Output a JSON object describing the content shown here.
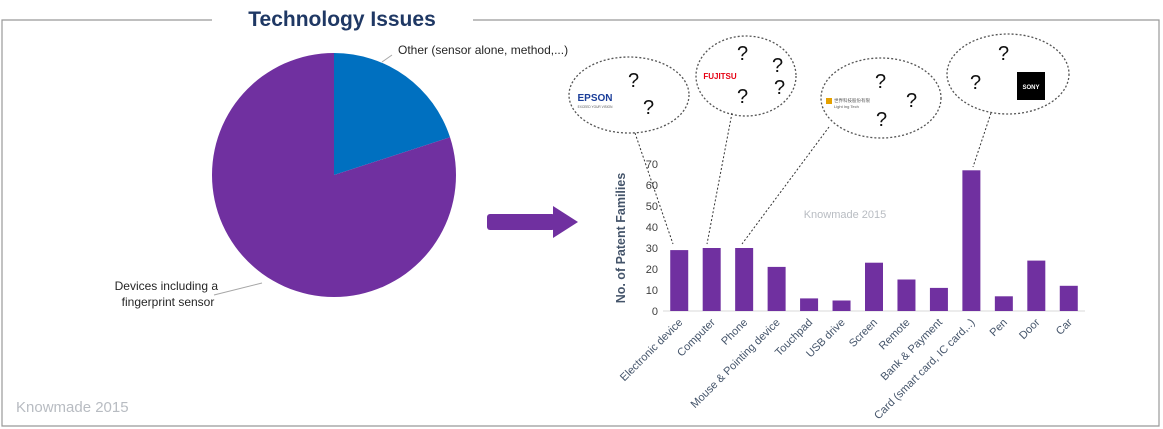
{
  "title": "Technology Issues",
  "watermark": "Knowmade 2015",
  "colors": {
    "purple": "#7030a0",
    "blue": "#0070c0",
    "axis_text": "#404040",
    "ylabel": "#44546a",
    "title": "#1f3864",
    "border": "#999999"
  },
  "logos": {
    "epson": "EPSON",
    "epson_tagline": "EXCEED YOUR VISION",
    "fujitsu": "FUJITSU",
    "chinese_company": "世界科技股份有限",
    "chinese_company_sub": "Light Ing Tech",
    "sony": "SONY"
  },
  "question_mark": "?",
  "icons": [
    "right-arrow-icon"
  ],
  "chart_data": [
    {
      "type": "pie",
      "categories": [
        "Other (sensor alone, method,...)",
        "Devices including a fingerprint sensor"
      ],
      "values": [
        20,
        80
      ],
      "colors": [
        "#0070c0",
        "#7030a0"
      ],
      "labels": [
        "Other (sensor alone, method,...)",
        "Devices including a\nfingerprint sensor"
      ]
    },
    {
      "type": "bar",
      "categories": [
        "Electronic device",
        "Computer",
        "Phone",
        "Mouse & Pointing device",
        "Touchpad",
        "USB drive",
        "Screen",
        "Remote",
        "Bank & Payment",
        "Card (smart card, IC card,..)",
        "Pen",
        "Door",
        "Car"
      ],
      "values": [
        29,
        30,
        30,
        21,
        6,
        5,
        23,
        15,
        11,
        67,
        7,
        24,
        12
      ],
      "ylabel": "No. of Patent Families",
      "xlabel": "",
      "ylim": [
        0,
        70
      ],
      "yticks": [
        0,
        10,
        20,
        30,
        40,
        50,
        60,
        70
      ],
      "watermark": "Knowmade 2015",
      "color": "#7030a0"
    }
  ]
}
